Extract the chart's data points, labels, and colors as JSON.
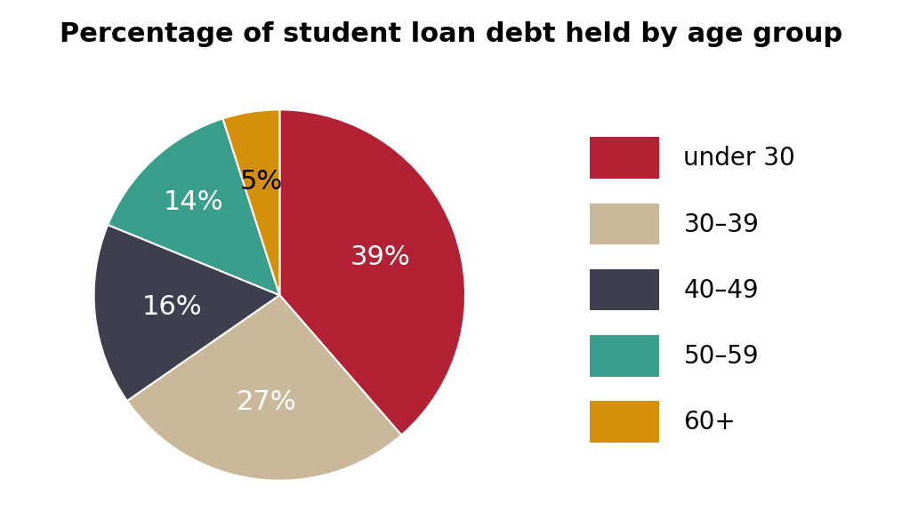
{
  "title": "Percentage of student loan debt held by age group",
  "slices": [
    39,
    27,
    16,
    14,
    5
  ],
  "labels": [
    "under 30",
    "30–39",
    "40–49",
    "50–59",
    "60+"
  ],
  "colors": [
    "#b22234",
    "#c9b99a",
    "#3d3f4e",
    "#3a9e8d",
    "#d4900a"
  ],
  "autopct_labels": [
    "39%",
    "27%",
    "16%",
    "14%",
    "5%"
  ],
  "autopct_colors": [
    "white",
    "white",
    "white",
    "white",
    "black"
  ],
  "title_fontsize": 22,
  "legend_fontsize": 20,
  "autopct_fontsize": 22,
  "startangle": 90
}
